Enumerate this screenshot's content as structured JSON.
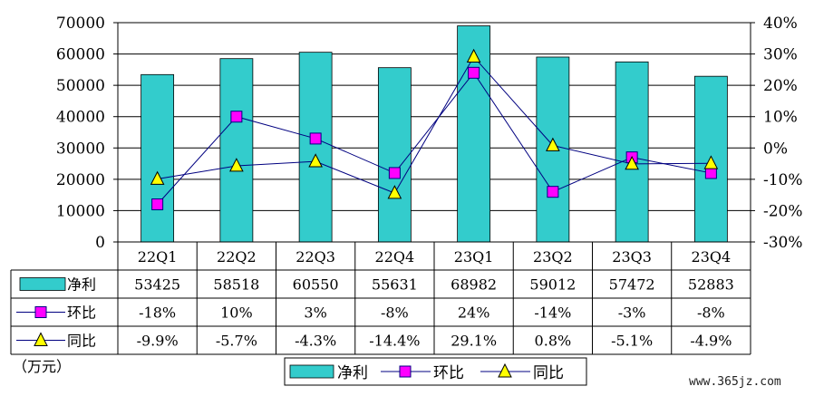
{
  "chart_data": {
    "type": "bar",
    "categories": [
      "22Q1",
      "22Q2",
      "22Q3",
      "22Q4",
      "23Q1",
      "23Q2",
      "23Q3",
      "23Q4"
    ],
    "series": [
      {
        "name": "净利",
        "kind": "bar",
        "axis": "left",
        "values": [
          53425,
          58518,
          60550,
          55631,
          68982,
          59012,
          57472,
          52883
        ],
        "labels": [
          "53425",
          "58518",
          "60550",
          "55631",
          "68982",
          "59012",
          "57472",
          "52883"
        ],
        "color": "#33CCCC"
      },
      {
        "name": "环比",
        "kind": "line",
        "axis": "right",
        "marker": "square",
        "values": [
          -18,
          10,
          3,
          -8,
          24,
          -14,
          -3,
          -8
        ],
        "labels": [
          "-18%",
          "10%",
          "3%",
          "-8%",
          "24%",
          "-14%",
          "-3%",
          "-8%"
        ],
        "color": "#FF00FF",
        "line_color": "#000080"
      },
      {
        "name": "同比",
        "kind": "line",
        "axis": "right",
        "marker": "triangle",
        "values": [
          -9.9,
          -5.7,
          -4.3,
          -14.4,
          29.1,
          0.8,
          -5.1,
          -4.9
        ],
        "labels": [
          "-9.9%",
          "-5.7%",
          "-4.3%",
          "-14.4%",
          "29.1%",
          "0.8%",
          "-5.1%",
          "-4.9%"
        ],
        "color": "#FFFF00",
        "line_color": "#000080"
      }
    ],
    "y_left": {
      "min": 0,
      "max": 70000,
      "ticks": [
        "0",
        "10000",
        "20000",
        "30000",
        "40000",
        "50000",
        "60000",
        "70000"
      ]
    },
    "y_right": {
      "min": -30,
      "max": 40,
      "ticks": [
        "-30%",
        "-20%",
        "-10%",
        "0%",
        "10%",
        "20%",
        "30%",
        "40%"
      ]
    },
    "grid": true,
    "data_table": true,
    "legend_position": "bottom",
    "unit_label": "（万元）",
    "watermark": "www.365jz.com"
  }
}
